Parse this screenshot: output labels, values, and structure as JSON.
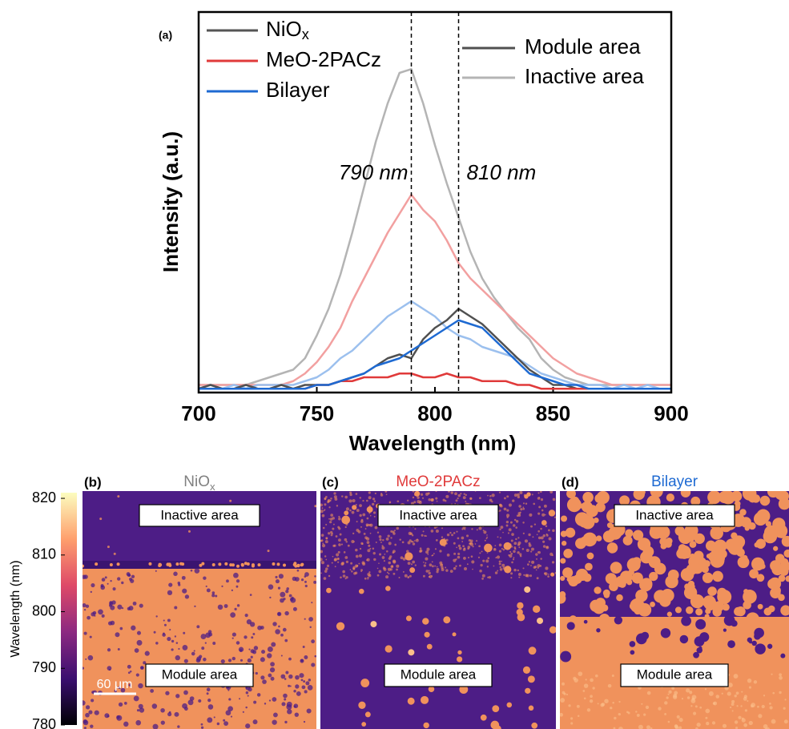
{
  "chart_data": {
    "type": "line",
    "panel_label": "(a)",
    "xlabel": "Wavelength (nm)",
    "ylabel": "Intensity (a.u.)",
    "xlim": [
      700,
      900
    ],
    "xticks": [
      700,
      750,
      800,
      850,
      900
    ],
    "ylim": [
      0,
      1
    ],
    "x": [
      700,
      705,
      710,
      715,
      720,
      725,
      730,
      735,
      740,
      745,
      750,
      755,
      760,
      765,
      770,
      775,
      780,
      785,
      790,
      795,
      800,
      805,
      810,
      815,
      820,
      825,
      830,
      835,
      840,
      845,
      850,
      855,
      860,
      865,
      870,
      875,
      880,
      885,
      890,
      895,
      900
    ],
    "series": [
      {
        "color": "#b4b4b4",
        "values": [
          0.02,
          0.02,
          0.02,
          0.02,
          0.02,
          0.03,
          0.04,
          0.05,
          0.06,
          0.09,
          0.15,
          0.22,
          0.31,
          0.42,
          0.54,
          0.66,
          0.76,
          0.84,
          0.85,
          0.76,
          0.65,
          0.55,
          0.46,
          0.37,
          0.3,
          0.25,
          0.21,
          0.17,
          0.14,
          0.09,
          0.06,
          0.04,
          0.03,
          0.02,
          0.02,
          0.02,
          0.02,
          0.02,
          0.02,
          0.02,
          0.02
        ]
      },
      {
        "color": "#f2a0a0",
        "values": [
          0.02,
          0.02,
          0.02,
          0.02,
          0.02,
          0.02,
          0.02,
          0.02,
          0.03,
          0.05,
          0.08,
          0.12,
          0.17,
          0.24,
          0.3,
          0.36,
          0.42,
          0.47,
          0.52,
          0.48,
          0.45,
          0.4,
          0.34,
          0.3,
          0.27,
          0.24,
          0.21,
          0.18,
          0.15,
          0.12,
          0.09,
          0.07,
          0.05,
          0.04,
          0.03,
          0.02,
          0.02,
          0.02,
          0.02,
          0.02,
          0.02
        ]
      },
      {
        "color": "#9cc0ee",
        "values": [
          0.01,
          0.02,
          0.01,
          0.02,
          0.01,
          0.02,
          0.02,
          0.02,
          0.02,
          0.03,
          0.04,
          0.06,
          0.09,
          0.11,
          0.14,
          0.17,
          0.2,
          0.22,
          0.24,
          0.22,
          0.2,
          0.17,
          0.15,
          0.14,
          0.12,
          0.11,
          0.1,
          0.09,
          0.07,
          0.05,
          0.04,
          0.03,
          0.02,
          0.02,
          0.02,
          0.01,
          0.02,
          0.01,
          0.02,
          0.01,
          0.01
        ]
      },
      {
        "color": "#505050",
        "values": [
          0.01,
          0.02,
          0.01,
          0.01,
          0.02,
          0.01,
          0.01,
          0.02,
          0.01,
          0.02,
          0.02,
          0.02,
          0.03,
          0.04,
          0.05,
          0.07,
          0.09,
          0.1,
          0.09,
          0.14,
          0.17,
          0.19,
          0.22,
          0.2,
          0.18,
          0.15,
          0.12,
          0.09,
          0.06,
          0.04,
          0.02,
          0.02,
          0.01,
          0.01,
          0.01,
          0.01,
          0.01,
          0.01,
          0.01,
          0.01,
          0.01
        ]
      },
      {
        "color": "#e03a3a",
        "values": [
          0.01,
          0.01,
          0.01,
          0.01,
          0.01,
          0.01,
          0.01,
          0.01,
          0.01,
          0.01,
          0.02,
          0.02,
          0.03,
          0.03,
          0.04,
          0.04,
          0.04,
          0.05,
          0.05,
          0.04,
          0.04,
          0.05,
          0.04,
          0.04,
          0.03,
          0.03,
          0.03,
          0.02,
          0.02,
          0.01,
          0.01,
          0.01,
          0.01,
          0.01,
          0.01,
          0.01,
          0.01,
          0.01,
          0.01,
          0.01,
          0.01
        ]
      },
      {
        "color": "#1e6ad2",
        "values": [
          0.01,
          0.01,
          0.01,
          0.01,
          0.01,
          0.01,
          0.01,
          0.01,
          0.01,
          0.01,
          0.02,
          0.02,
          0.03,
          0.04,
          0.05,
          0.07,
          0.08,
          0.09,
          0.11,
          0.13,
          0.15,
          0.17,
          0.19,
          0.18,
          0.17,
          0.14,
          0.11,
          0.08,
          0.05,
          0.04,
          0.03,
          0.02,
          0.02,
          0.01,
          0.01,
          0.01,
          0.01,
          0.01,
          0.01,
          0.01,
          0.01
        ]
      }
    ],
    "legend": {
      "materials": [
        {
          "name": {
            "text": "NiO",
            "sub": "x"
          },
          "color": "#555555"
        },
        {
          "name": {
            "text": "MeO-2PACz"
          },
          "color": "#e03a3a"
        },
        {
          "name": {
            "text": "Bilayer"
          },
          "color": "#1e6ad2"
        }
      ],
      "areas": [
        {
          "name": "Module area",
          "color": "#505050"
        },
        {
          "name": "Inactive area",
          "color": "#b4b4b4"
        }
      ]
    },
    "annotations": [
      {
        "x": 790,
        "label": "790 nm"
      },
      {
        "x": 810,
        "label": "810 nm"
      }
    ]
  },
  "maps": {
    "colorbar": {
      "label": "Wavelength (nm)",
      "ylim": [
        780,
        821
      ],
      "yticks": [
        780,
        790,
        800,
        810,
        820
      ]
    },
    "panels": [
      {
        "label": "(b)",
        "title": {
          "text": "NiO",
          "sub": "x"
        },
        "title_color": "#808080",
        "top": "Inactive area",
        "bottom": "Module area",
        "scale_bar": "60 μm"
      },
      {
        "label": "(c)",
        "title": {
          "text": "MeO-2PACz"
        },
        "title_color": "#e03a3a",
        "top": "Inactive area",
        "bottom": "Module area"
      },
      {
        "label": "(d)",
        "title": {
          "text": "Bilayer"
        },
        "title_color": "#1e6ad2",
        "top": "Inactive area",
        "bottom": "Module area"
      }
    ]
  }
}
